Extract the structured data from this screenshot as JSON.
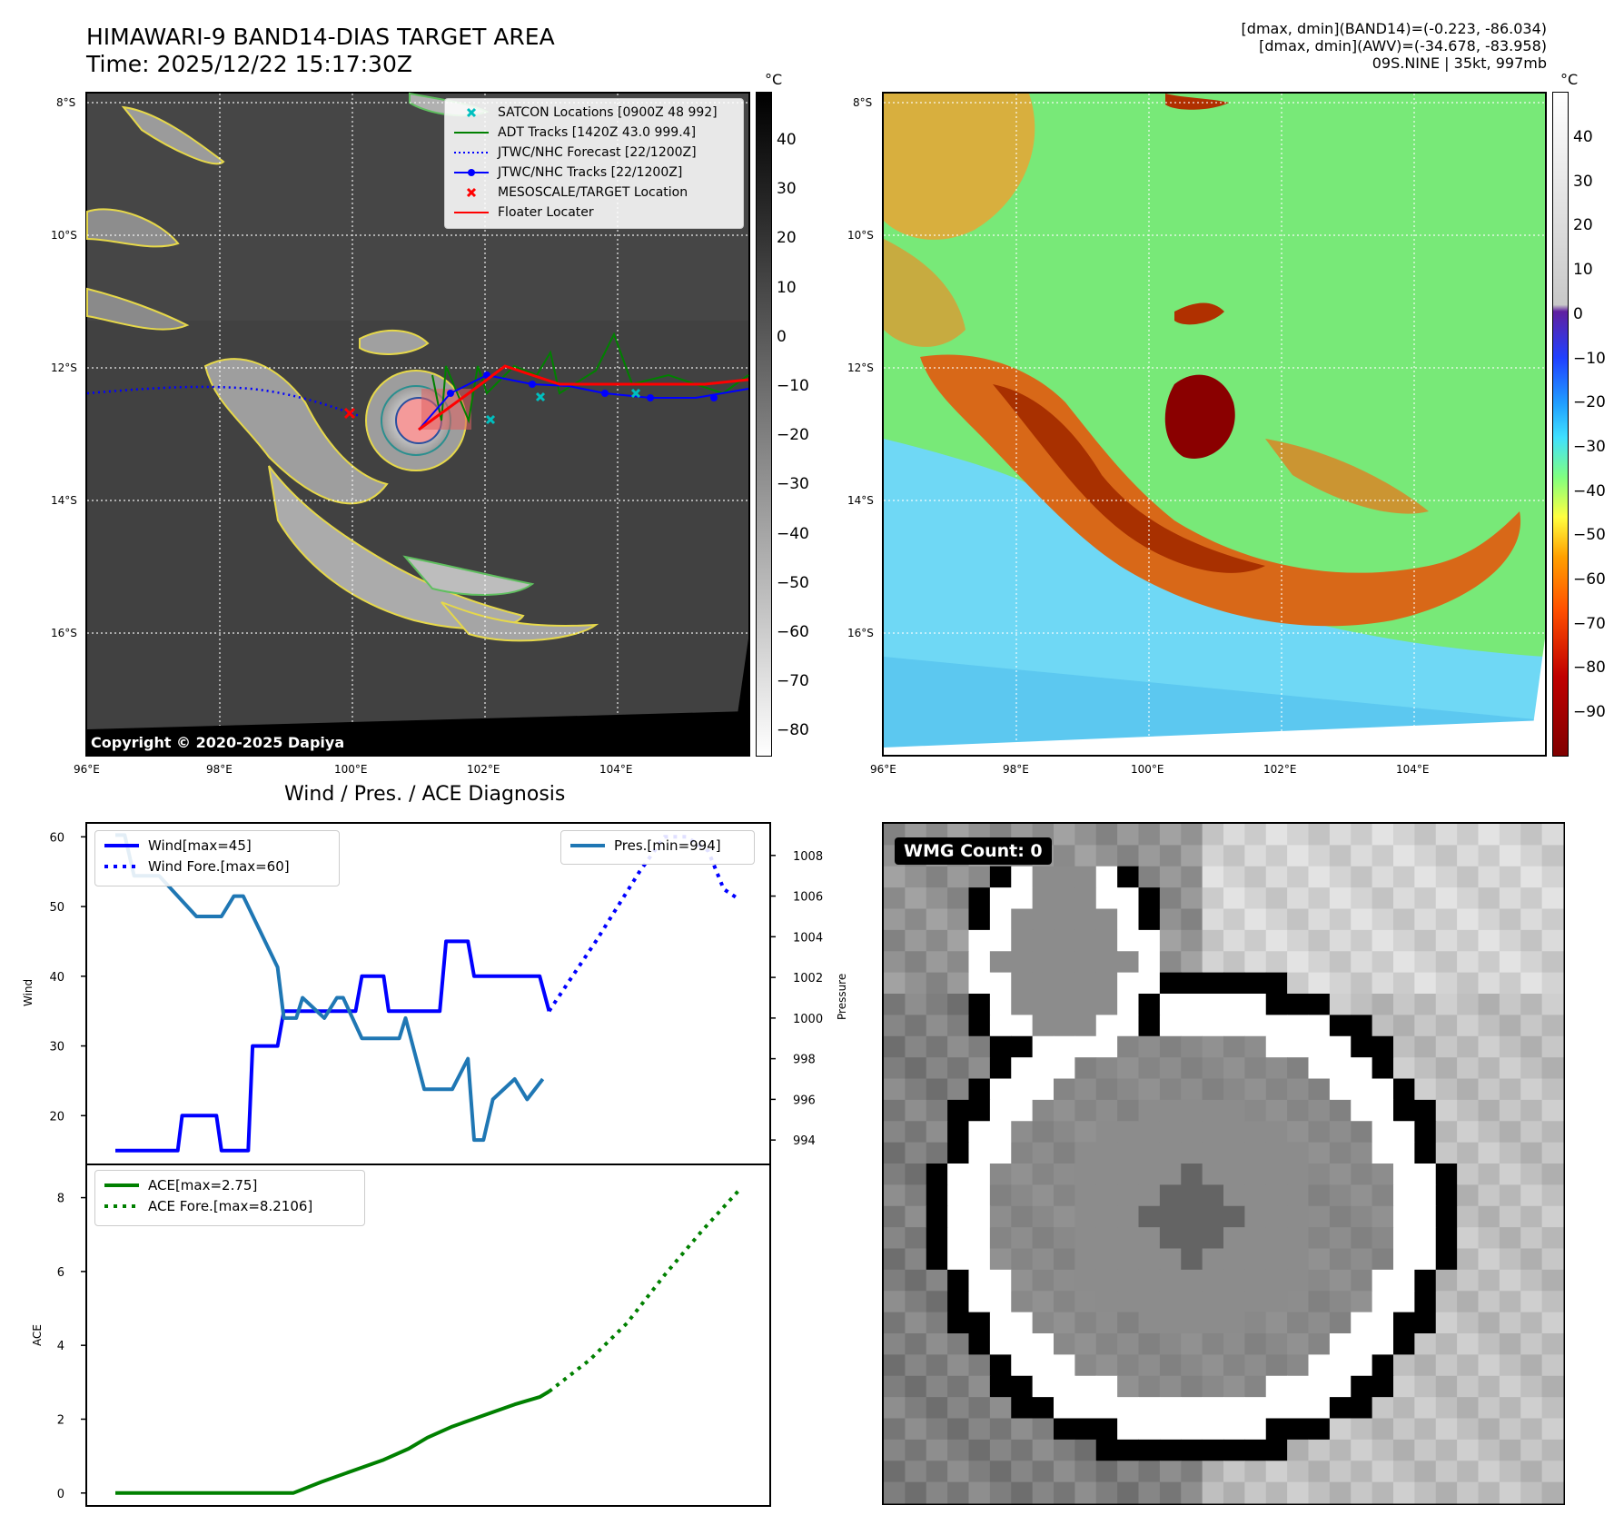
{
  "header": {
    "title_line1": "HIMAWARI-9 BAND14-DIAS TARGET AREA",
    "title_line2": "Time: 2025/12/22 15:17:30Z",
    "right_line1": "[dmax, dmin](BAND14)=(-0.223, -86.034)",
    "right_line2": "[dmax, dmin](AWV)=(-34.678, -83.958)",
    "right_line3": "09S.NINE | 35kt, 997mb"
  },
  "map_axes": {
    "lat_ticks": [
      "8°S",
      "10°S",
      "12°S",
      "14°S",
      "16°S"
    ],
    "lon_ticks": [
      "96°E",
      "98°E",
      "100°E",
      "102°E",
      "104°E"
    ]
  },
  "colorbar_left": {
    "unit": "°C",
    "ticks": [
      "40",
      "30",
      "20",
      "10",
      "0",
      "−10",
      "−20",
      "−30",
      "−40",
      "−50",
      "−60",
      "−70",
      "−80"
    ]
  },
  "colorbar_right": {
    "unit": "°C",
    "ticks": [
      "40",
      "30",
      "20",
      "10",
      "0",
      "−10",
      "−20",
      "−30",
      "−40",
      "−50",
      "−60",
      "−70",
      "−80",
      "−90"
    ]
  },
  "map_legend": {
    "items": [
      {
        "label": "SATCON Locations [0900Z 48 992]",
        "color": "#00bfbf",
        "kind": "x"
      },
      {
        "label": "ADT Tracks [1420Z 43.0 999.4]",
        "color": "#008000",
        "kind": "line"
      },
      {
        "label": "JTWC/NHC Forecast [22/1200Z]",
        "color": "#0000ff",
        "kind": "dotted"
      },
      {
        "label": "JTWC/NHC Tracks [22/1200Z]",
        "color": "#0000ff",
        "kind": "line-dot"
      },
      {
        "label": "MESOSCALE/TARGET Location",
        "color": "#ff0000",
        "kind": "x"
      },
      {
        "label": "Floater Locater",
        "color": "#ff0000",
        "kind": "line"
      }
    ]
  },
  "copyright": "Copyright © 2020-2025 Dapiya",
  "wmg": {
    "label": "WMG Count: 0"
  },
  "chart_title": "Wind / Pres. / ACE Diagnosis",
  "chart_data": [
    {
      "type": "line",
      "ylabel": "Wind",
      "ylim": [
        13,
        62
      ],
      "yticks": [
        20,
        30,
        40,
        50,
        60
      ],
      "y2label": "Pressure",
      "y2lim": [
        992.8,
        1009.6
      ],
      "y2ticks": [
        994,
        996,
        998,
        1000,
        1002,
        1004,
        1006,
        1008
      ],
      "legend_left": [
        "Wind[max=45]",
        "Wind Fore.[max=60]"
      ],
      "legend_right": [
        "Pres.[min=994]"
      ],
      "series": [
        {
          "name": "Wind[max=45]",
          "color": "#0000ff",
          "style": "solid",
          "axis": "left",
          "x": [
            0,
            10,
            10.7,
            16.2,
            17,
            21.3,
            22,
            26,
            27,
            38.5,
            39.5,
            43,
            43.8,
            52,
            53,
            56.5,
            57.5,
            59.5,
            60.5,
            62.5,
            63.5,
            68,
            69.5
          ],
          "values": [
            15,
            15,
            20,
            20,
            15,
            15,
            30,
            30,
            35,
            35,
            40,
            40,
            35,
            35,
            45,
            45,
            40,
            40,
            40,
            40,
            40,
            40,
            35
          ]
        },
        {
          "name": "Wind Fore.[max=60]",
          "color": "#0000ff",
          "style": "dotted",
          "axis": "left",
          "x": [
            69.5,
            77,
            84,
            88,
            91.5,
            95,
            97.5,
            100
          ],
          "values": [
            35,
            45,
            55,
            60,
            60,
            58,
            52.5,
            51
          ]
        },
        {
          "name": "Pres.[min=994]",
          "color": "#1f77b4",
          "style": "solid",
          "axis": "right",
          "x": [
            0,
            1.5,
            3,
            7,
            13,
            14.5,
            17,
            19,
            20.5,
            26,
            27,
            29,
            30,
            33.5,
            35.5,
            36.5,
            39.5,
            45.5,
            46.5,
            49.5,
            54,
            56.5,
            57.5,
            59,
            60.5,
            64,
            66,
            68.5
          ],
          "values": [
            1009,
            1009,
            1007,
            1007,
            1005,
            1005,
            1005,
            1006,
            1006,
            1002.5,
            1000,
            1000,
            1001,
            1000,
            1001,
            1001,
            999,
            999,
            1000,
            996.5,
            996.5,
            998,
            994,
            994,
            996,
            997,
            996,
            997
          ]
        }
      ]
    },
    {
      "type": "line",
      "ylabel": "ACE",
      "ylim": [
        -0.35,
        8.9
      ],
      "yticks": [
        0,
        2,
        4,
        6,
        8
      ],
      "legend": [
        "ACE[max=2.75]",
        "ACE Fore.[max=8.2106]"
      ],
      "series": [
        {
          "name": "ACE[max=2.75]",
          "color": "#008000",
          "style": "solid",
          "x": [
            0,
            28.5,
            33,
            38,
            43,
            47,
            50,
            54,
            59,
            64,
            68,
            69.5
          ],
          "values": [
            0,
            0,
            0.3,
            0.6,
            0.9,
            1.2,
            1.5,
            1.8,
            2.1,
            2.4,
            2.6,
            2.75
          ]
        },
        {
          "name": "ACE Fore.[max=8.2106]",
          "color": "#008000",
          "style": "dotted",
          "x": [
            69.5,
            76,
            82,
            88,
            94,
            100
          ],
          "values": [
            2.75,
            3.6,
            4.6,
            5.9,
            7.1,
            8.21
          ]
        }
      ]
    }
  ]
}
